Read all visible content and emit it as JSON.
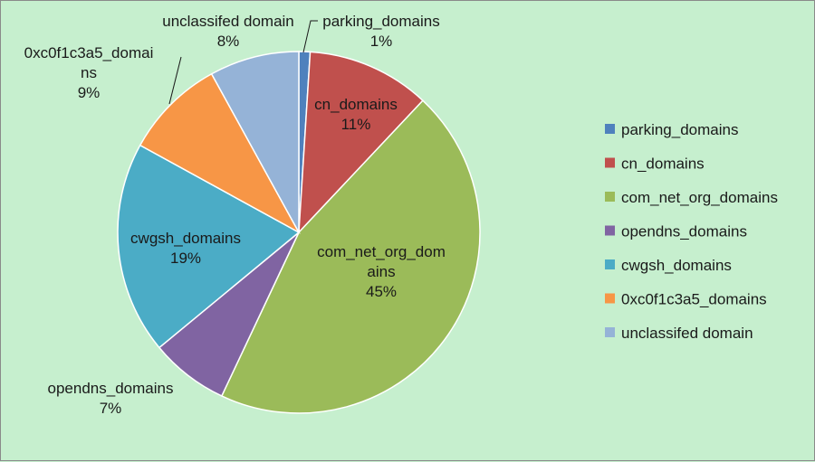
{
  "chart_data": {
    "type": "pie",
    "legend_position": "right",
    "slices": [
      {
        "name": "parking_domains",
        "value": 1,
        "label": "1%",
        "color": "#4f81bd"
      },
      {
        "name": "cn_domains",
        "value": 11,
        "label": "11%",
        "color": "#c0504d"
      },
      {
        "name": "com_net_org_domains",
        "value": 45,
        "label": "45%",
        "color": "#9bbb59"
      },
      {
        "name": "opendns_domains",
        "value": 7,
        "label": "7%",
        "color": "#8064a2"
      },
      {
        "name": "cwgsh_domains",
        "value": 19,
        "label": "19%",
        "color": "#4bacc6"
      },
      {
        "name": "0xc0f1c3a5_domains",
        "value": 9,
        "label": "9%",
        "color": "#f79646"
      },
      {
        "name": "unclassifed domain",
        "value": 8,
        "label": "8%",
        "color": "#95b3d7"
      }
    ]
  }
}
